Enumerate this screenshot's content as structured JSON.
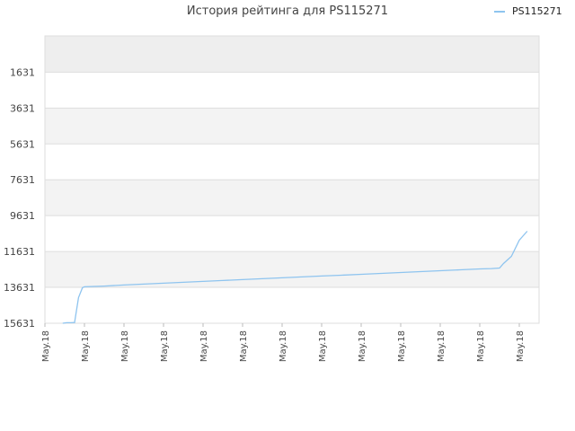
{
  "chart_data": {
    "type": "line",
    "title": "История рейтинга для PS115271",
    "xlabel": "",
    "ylabel": "",
    "y_axis_inverted": true,
    "ylim": [
      15631,
      -390
    ],
    "y_ticks": [
      1631,
      3631,
      5631,
      7631,
      9631,
      11631,
      13631,
      15631
    ],
    "x_tick_labels": [
      "May.18",
      "May.18",
      "May.18",
      "May.18",
      "May.18",
      "May.18",
      "May.18",
      "May.18",
      "May.18",
      "May.18",
      "May.18",
      "May.18",
      "May.18"
    ],
    "grid": true,
    "legend_position": "top-right",
    "series": [
      {
        "name": "PS115271",
        "color": "#8ec4ef",
        "x_index": [
          0.45,
          0.55,
          0.65,
          0.75,
          0.85,
          0.95,
          1.0,
          1.5,
          2.0,
          2.5,
          3.0,
          3.5,
          4.0,
          4.5,
          5.0,
          5.5,
          6.0,
          6.5,
          7.0,
          7.5,
          8.0,
          8.5,
          9.0,
          9.5,
          10.0,
          10.5,
          11.0,
          11.3,
          11.5,
          11.6,
          11.8,
          12.0,
          12.2
        ],
        "values": [
          15631,
          15600,
          15600,
          15590,
          14200,
          13650,
          13600,
          13560,
          13500,
          13450,
          13400,
          13350,
          13300,
          13250,
          13200,
          13150,
          13100,
          13050,
          13000,
          12950,
          12900,
          12850,
          12800,
          12750,
          12700,
          12650,
          12600,
          12580,
          12550,
          12300,
          11900,
          11000,
          10500
        ]
      }
    ]
  }
}
